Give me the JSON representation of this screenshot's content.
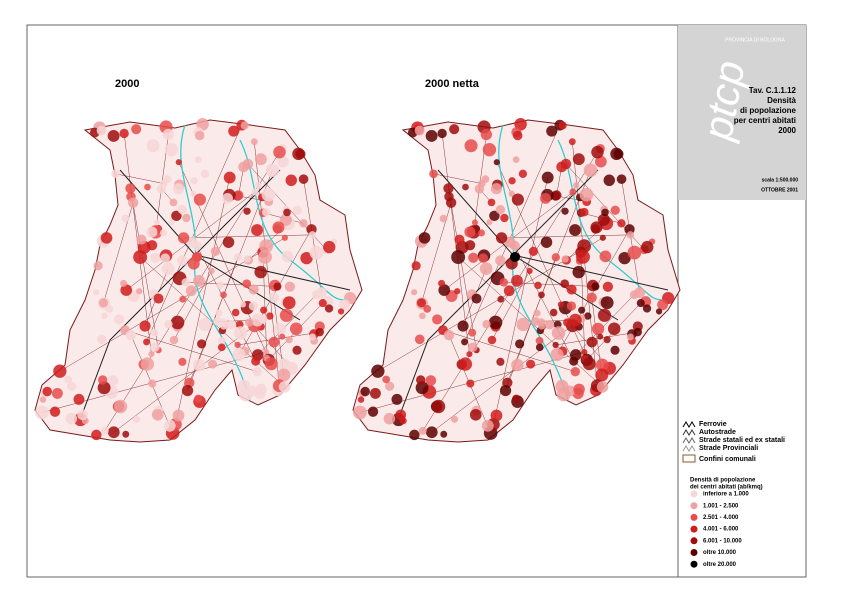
{
  "maps": [
    {
      "title": "2000"
    },
    {
      "title": "2000 netta"
    }
  ],
  "header": {
    "agency": "PROVINCIA DI BOLOGNA",
    "code": "Tav. C.1.1.12",
    "title_lines": [
      "Densità",
      "di popolazione",
      "per centri abitati",
      "2000"
    ],
    "scale": "scala 1:500.000",
    "date": "OTTOBRE 2001"
  },
  "legend": {
    "lines": [
      {
        "label": "Ferrovie",
        "color": "#000000"
      },
      {
        "label": "Autostrade",
        "color": "#333333"
      },
      {
        "label": "Strade statali ed ex statali",
        "color": "#666666"
      },
      {
        "label": "Strade Provinciali",
        "color": "#999999"
      }
    ],
    "boundary": {
      "label": "Confini comunali",
      "color": "#8b5a2b"
    },
    "density_title": [
      "Densità di popolazione",
      "dei centri abitati (ab/kmq)"
    ],
    "classes": [
      {
        "label": "inferiore a 1.000",
        "color": "#f7d6d6"
      },
      {
        "label": "1.001 - 2.500",
        "color": "#f0a0a0"
      },
      {
        "label": "2.501 - 4.000",
        "color": "#e84c4c"
      },
      {
        "label": "4.001 - 6.000",
        "color": "#d01c1c"
      },
      {
        "label": "6.001 - 10.000",
        "color": "#a00c0c"
      },
      {
        "label": "oltre 10.000",
        "color": "#5e0000"
      },
      {
        "label": "oltre 20.000",
        "color": "#000000"
      }
    ]
  }
}
